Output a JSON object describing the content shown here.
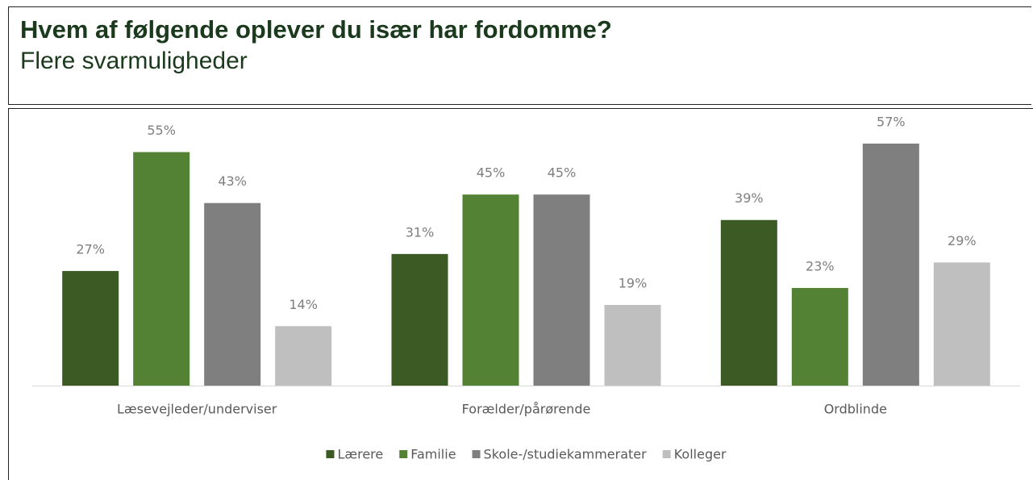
{
  "chart_data": {
    "type": "bar",
    "title": "Hvem af følgende oplever du især har fordomme?",
    "subtitle": "Flere svarmuligheder",
    "categories": [
      "Læsevejleder/underviser",
      "Forælder/pårørende",
      "Ordblinde"
    ],
    "series": [
      {
        "name": "Lærere",
        "color": "#3b5a24",
        "values": [
          27,
          31,
          39
        ],
        "value_labels": [
          "27%",
          "31%",
          "39%"
        ]
      },
      {
        "name": "Familie",
        "color": "#548235",
        "values": [
          55,
          45,
          23
        ],
        "value_labels": [
          "55%",
          "45%",
          "23%"
        ]
      },
      {
        "name": "Skole-/studiekammerater",
        "color": "#7f7f7f",
        "values": [
          43,
          45,
          57
        ],
        "value_labels": [
          "43%",
          "45%",
          "57%"
        ]
      },
      {
        "name": "Kolleger",
        "color": "#bfbfbf",
        "values": [
          14,
          19,
          29
        ],
        "value_labels": [
          "14%",
          "19%",
          "29%"
        ]
      }
    ],
    "legend": "bottom"
  }
}
